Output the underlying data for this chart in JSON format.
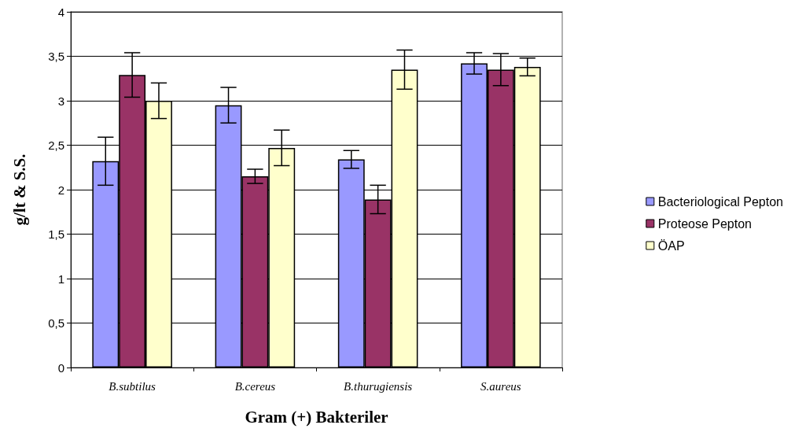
{
  "chart_data": {
    "type": "bar",
    "xlabel": "Gram (+) Bakteriler",
    "ylabel": "g/lt & S.S.",
    "categories": [
      "B.subtilus",
      "B.cereus",
      "B.thurugiensis",
      "S.aureus"
    ],
    "series": [
      {
        "name": "Bacteriological Pepton",
        "color": "#9999ff",
        "values": [
          2.32,
          2.95,
          2.34,
          3.42
        ],
        "errors": [
          0.27,
          0.2,
          0.1,
          0.12
        ]
      },
      {
        "name": "Proteose Pepton",
        "color": "#993366",
        "values": [
          3.29,
          2.15,
          1.89,
          3.35
        ],
        "errors": [
          0.25,
          0.08,
          0.16,
          0.18
        ]
      },
      {
        "name": "ÖAP",
        "color": "#ffffcc",
        "values": [
          3.0,
          2.47,
          3.35,
          3.38
        ],
        "errors": [
          0.2,
          0.2,
          0.22,
          0.1
        ]
      }
    ],
    "ylim": [
      0,
      4
    ],
    "yticks": [
      0,
      {
        "value": 0.5,
        "label": "0,5"
      },
      1,
      {
        "value": 1.5,
        "label": "1,5"
      },
      2,
      {
        "value": 2.5,
        "label": "2,5"
      },
      3,
      {
        "value": 3.5,
        "label": "3,5"
      },
      4
    ],
    "grid": "y",
    "legend": "right"
  }
}
